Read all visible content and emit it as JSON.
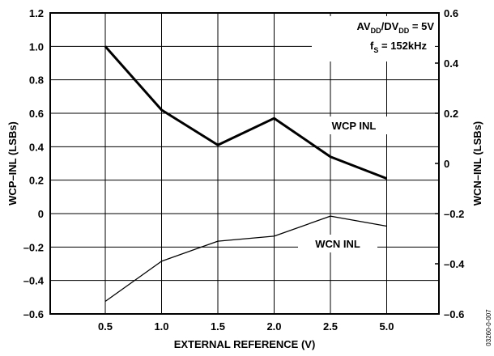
{
  "chart_data": {
    "type": "line",
    "xlabel": "EXTERNAL REFERENCE (V)",
    "ylabel_left": "WCP–INL (LSBs)",
    "ylabel_right": "WCN–INL (LSBs)",
    "categories": [
      "0.5",
      "1.0",
      "1.5",
      "2.0",
      "2.5",
      "5.0"
    ],
    "ylim_left": [
      -0.6,
      1.2
    ],
    "yticks_left": [
      "1.2",
      "1.0",
      "0.8",
      "0.6",
      "0.4",
      "0.2",
      "0",
      "–0.2",
      "–0.4",
      "–0.6"
    ],
    "ylim_right": [
      -0.6,
      0.6
    ],
    "yticks_right": [
      "0.6",
      "0.4",
      "0.2",
      "0",
      "–0.2",
      "–0.4",
      "–0.6"
    ],
    "grid": true,
    "series": [
      {
        "name": "WCP INL",
        "axis": "left",
        "values": [
          1.0,
          0.62,
          0.41,
          0.57,
          0.34,
          0.21
        ]
      },
      {
        "name": "WCN INL",
        "axis": "right",
        "values": [
          -0.55,
          -0.39,
          -0.31,
          -0.29,
          -0.21,
          -0.25
        ]
      }
    ],
    "annotations": {
      "condition1": {
        "main": "AV",
        "sub1": "DD",
        "mid": "/DV",
        "sub2": "DD",
        "tail": " = 5V"
      },
      "condition2": {
        "main": "f",
        "sub": "S",
        "tail": " = 152kHz"
      }
    },
    "figure_id": "03260-0-007"
  }
}
